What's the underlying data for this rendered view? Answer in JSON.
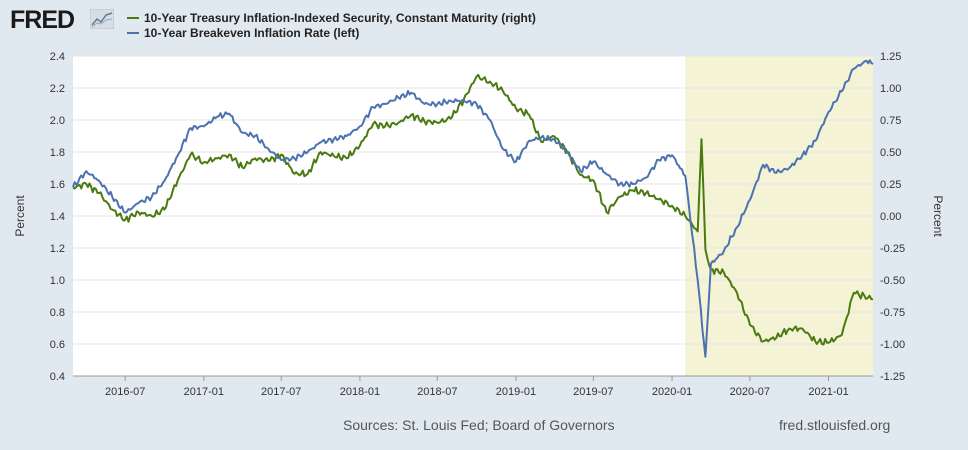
{
  "brand": {
    "name": "FRED"
  },
  "footer": {
    "sources": "Sources: St. Louis Fed; Board of Governors",
    "site": "fred.stlouisfed.org"
  },
  "colors": {
    "tips": "#4b7a10",
    "breakeven": "#4c72b0",
    "recession": "#f5f3d6",
    "plot_bg": "#ffffff"
  },
  "chart_data": {
    "type": "line",
    "x_axis": {
      "type": "date",
      "range": [
        "2016-03-01",
        "2021-04-15"
      ],
      "tick_labels": [
        "2016-07",
        "2017-01",
        "2017-07",
        "2018-01",
        "2018-07",
        "2019-01",
        "2019-07",
        "2020-01",
        "2020-07",
        "2021-01"
      ]
    },
    "y_axis_left": {
      "label": "Percent",
      "range": [
        0.4,
        2.4
      ],
      "ticks": [
        "0.4",
        "0.6",
        "0.8",
        "1.0",
        "1.2",
        "1.4",
        "1.6",
        "1.8",
        "2.0",
        "2.2",
        "2.4"
      ]
    },
    "y_axis_right": {
      "label": "Percent",
      "range": [
        -1.25,
        1.25
      ],
      "ticks": [
        "-1.25",
        "-1.00",
        "-0.75",
        "-0.50",
        "-0.25",
        "0.00",
        "0.25",
        "0.50",
        "0.75",
        "1.00",
        "1.25"
      ]
    },
    "shaded_periods": [
      {
        "start": "2020-02-01",
        "end": "2021-04-15"
      }
    ],
    "grid": "horizontal",
    "series": [
      {
        "name": "10-Year Treasury Inflation-Indexed Security, Constant Maturity (right)",
        "axis": "right",
        "x": [
          "2016-03-01",
          "2016-04-01",
          "2016-05-01",
          "2016-06-01",
          "2016-07-01",
          "2016-08-01",
          "2016-09-01",
          "2016-10-01",
          "2016-11-01",
          "2016-12-01",
          "2017-01-01",
          "2017-02-01",
          "2017-03-01",
          "2017-04-01",
          "2017-05-01",
          "2017-06-01",
          "2017-07-01",
          "2017-08-01",
          "2017-09-01",
          "2017-10-01",
          "2017-11-01",
          "2017-12-01",
          "2018-01-01",
          "2018-02-01",
          "2018-03-01",
          "2018-04-01",
          "2018-05-01",
          "2018-06-01",
          "2018-07-01",
          "2018-08-01",
          "2018-09-01",
          "2018-10-01",
          "2018-11-01",
          "2018-12-01",
          "2019-01-01",
          "2019-02-01",
          "2019-03-01",
          "2019-04-01",
          "2019-05-01",
          "2019-06-01",
          "2019-07-01",
          "2019-08-01",
          "2019-09-01",
          "2019-10-01",
          "2019-11-01",
          "2019-12-01",
          "2020-01-01",
          "2020-02-01",
          "2020-03-01",
          "2020-03-10",
          "2020-03-19",
          "2020-04-01",
          "2020-05-01",
          "2020-06-01",
          "2020-07-01",
          "2020-08-01",
          "2020-09-01",
          "2020-10-01",
          "2020-11-01",
          "2020-12-01",
          "2021-01-01",
          "2021-02-01",
          "2021-03-01",
          "2021-04-15"
        ],
        "values": [
          0.22,
          0.25,
          0.18,
          0.05,
          -0.03,
          0.03,
          0.0,
          0.05,
          0.28,
          0.48,
          0.42,
          0.45,
          0.48,
          0.38,
          0.45,
          0.43,
          0.48,
          0.33,
          0.33,
          0.5,
          0.47,
          0.45,
          0.55,
          0.72,
          0.7,
          0.73,
          0.79,
          0.74,
          0.73,
          0.76,
          0.91,
          1.09,
          1.05,
          0.98,
          0.84,
          0.79,
          0.58,
          0.62,
          0.5,
          0.32,
          0.28,
          0.03,
          0.15,
          0.2,
          0.18,
          0.13,
          0.08,
          0.0,
          -0.12,
          0.6,
          -0.26,
          -0.42,
          -0.44,
          -0.6,
          -0.85,
          -0.98,
          -0.95,
          -0.88,
          -0.88,
          -0.98,
          -0.99,
          -0.93,
          -0.6,
          -0.65
        ]
      },
      {
        "name": "10-Year Breakeven Inflation Rate (left)",
        "axis": "left",
        "x": [
          "2016-03-01",
          "2016-04-01",
          "2016-05-01",
          "2016-06-01",
          "2016-07-01",
          "2016-08-01",
          "2016-09-01",
          "2016-10-01",
          "2016-11-01",
          "2016-12-01",
          "2017-01-01",
          "2017-02-01",
          "2017-03-01",
          "2017-04-01",
          "2017-05-01",
          "2017-06-01",
          "2017-07-01",
          "2017-08-01",
          "2017-09-01",
          "2017-10-01",
          "2017-11-01",
          "2017-12-01",
          "2018-01-01",
          "2018-02-01",
          "2018-03-01",
          "2018-04-01",
          "2018-05-01",
          "2018-06-01",
          "2018-07-01",
          "2018-08-01",
          "2018-09-01",
          "2018-10-01",
          "2018-11-01",
          "2018-12-01",
          "2019-01-01",
          "2019-02-01",
          "2019-03-01",
          "2019-04-01",
          "2019-05-01",
          "2019-06-01",
          "2019-07-01",
          "2019-08-01",
          "2019-09-01",
          "2019-10-01",
          "2019-11-01",
          "2019-12-01",
          "2020-01-01",
          "2020-02-01",
          "2020-03-01",
          "2020-03-19",
          "2020-04-01",
          "2020-05-01",
          "2020-06-01",
          "2020-07-01",
          "2020-08-01",
          "2020-09-01",
          "2020-10-01",
          "2020-11-01",
          "2020-12-01",
          "2021-01-01",
          "2021-02-01",
          "2021-03-01",
          "2021-03-31",
          "2021-04-15"
        ],
        "values": [
          1.58,
          1.68,
          1.62,
          1.52,
          1.42,
          1.48,
          1.52,
          1.62,
          1.78,
          1.95,
          1.96,
          2.02,
          2.04,
          1.92,
          1.9,
          1.82,
          1.75,
          1.76,
          1.8,
          1.86,
          1.88,
          1.9,
          1.96,
          2.08,
          2.1,
          2.14,
          2.17,
          2.1,
          2.1,
          2.12,
          2.12,
          2.1,
          2.0,
          1.82,
          1.74,
          1.87,
          1.89,
          1.88,
          1.8,
          1.68,
          1.74,
          1.66,
          1.6,
          1.6,
          1.64,
          1.75,
          1.78,
          1.65,
          1.0,
          0.52,
          1.1,
          1.18,
          1.33,
          1.5,
          1.72,
          1.67,
          1.7,
          1.78,
          1.87,
          2.05,
          2.18,
          2.32,
          2.37,
          2.35
        ]
      }
    ]
  }
}
